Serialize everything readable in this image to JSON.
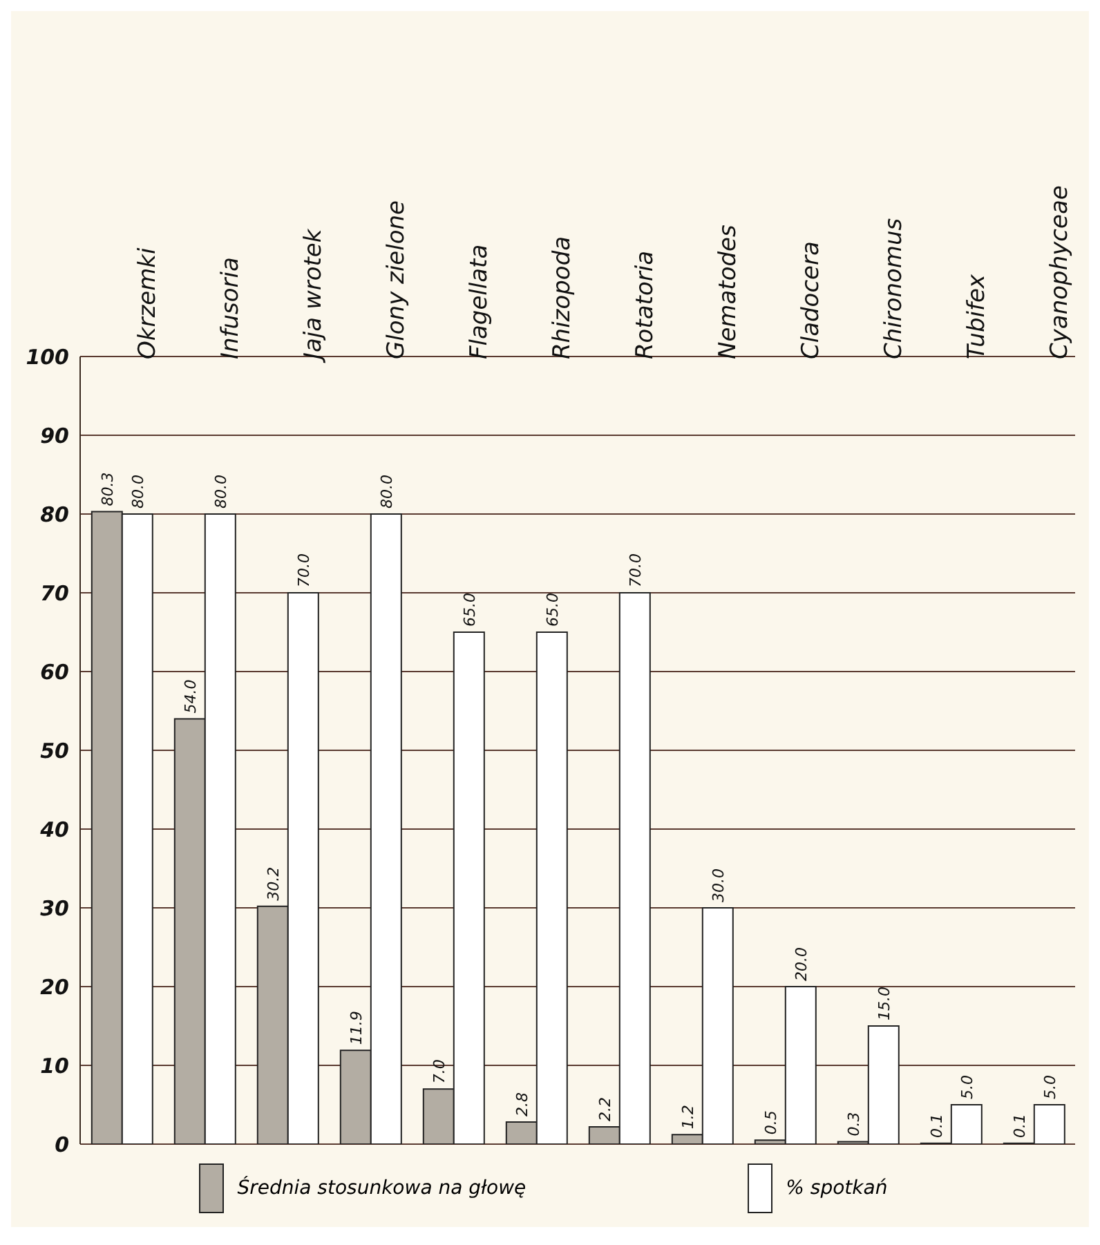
{
  "chart_data": {
    "type": "bar",
    "categories": [
      "Okrzemki",
      "Infusoria",
      "Jaja wrotek",
      "Glony zielone",
      "Flagellata",
      "Rhizopoda",
      "Rotatoria",
      "Nematodes",
      "Cladocera",
      "Chironomus",
      "Tubifex",
      "Cyanophyceae"
    ],
    "series": [
      {
        "name": "Średnia stosunkowa na głowę",
        "color": "#b3ada3",
        "values": [
          80.3,
          54.0,
          30.2,
          11.9,
          7.0,
          2.8,
          2.2,
          1.2,
          0.5,
          0.3,
          0.1,
          0.1
        ],
        "value_labels": [
          "80.3",
          "54.0",
          "30.2",
          "11.9",
          "7.0",
          "2.8",
          "2.2",
          "1.2",
          "0.5",
          "0.3",
          "0.1",
          "0.1"
        ]
      },
      {
        "name": "% spotkań",
        "color": "#ffffff",
        "values": [
          80.0,
          80.0,
          70.0,
          80.0,
          65.0,
          65.0,
          70.0,
          30.0,
          20.0,
          15.0,
          5.0,
          5.0
        ],
        "value_labels": [
          "80.0",
          "80.0",
          "70.0",
          "80.0",
          "65.0",
          "65.0",
          "70.0",
          "30.0",
          "20.0",
          "15.0",
          "5.0",
          "5.0"
        ]
      }
    ],
    "ylim": [
      0,
      100
    ],
    "yticks": [
      0,
      10,
      20,
      30,
      40,
      50,
      60,
      70,
      80,
      90,
      100
    ],
    "grid": "y",
    "legend": "bottom"
  }
}
